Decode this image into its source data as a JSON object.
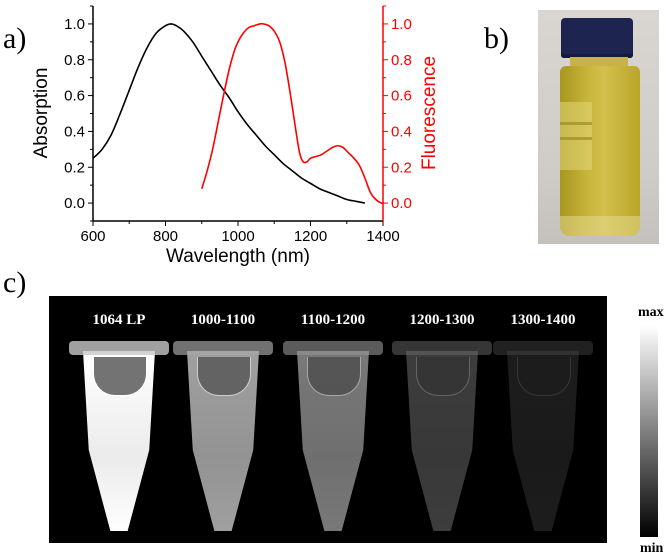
{
  "panels": {
    "a_label": "a)",
    "b_label": "b)",
    "c_label": "c)"
  },
  "chart_data": {
    "type": "line",
    "title": "",
    "xlabel": "Wavelength (nm)",
    "ylabel": "Absorption",
    "y2label": "Fluorescence",
    "xlim": [
      600,
      1400
    ],
    "ylim": [
      -0.1,
      1.1
    ],
    "y2lim": [
      -0.1,
      1.1
    ],
    "xticks": [
      600,
      800,
      1000,
      1200,
      1400
    ],
    "yticks": [
      "0.0",
      "0.2",
      "0.4",
      "0.6",
      "0.8",
      "1.0"
    ],
    "y2ticks": [
      "0.0",
      "0.2",
      "0.4",
      "0.6",
      "0.8",
      "1.0"
    ],
    "grid": false,
    "series": [
      {
        "name": "Absorption",
        "axis": "left",
        "color": "#000000",
        "x": [
          600,
          625,
          650,
          675,
          700,
          725,
          750,
          775,
          800,
          815,
          830,
          850,
          875,
          900,
          925,
          950,
          975,
          1000,
          1025,
          1050,
          1075,
          1100,
          1125,
          1150,
          1175,
          1200,
          1225,
          1250,
          1275,
          1300,
          1325,
          1350
        ],
        "y": [
          0.25,
          0.3,
          0.38,
          0.5,
          0.63,
          0.76,
          0.87,
          0.95,
          0.99,
          1.0,
          0.99,
          0.96,
          0.9,
          0.82,
          0.74,
          0.66,
          0.59,
          0.51,
          0.44,
          0.38,
          0.32,
          0.27,
          0.22,
          0.18,
          0.14,
          0.11,
          0.08,
          0.06,
          0.04,
          0.02,
          0.01,
          0.0
        ]
      },
      {
        "name": "Fluorescence",
        "axis": "right",
        "color": "#ff0000",
        "x": [
          900,
          915,
          930,
          945,
          960,
          975,
          990,
          1000,
          1015,
          1030,
          1045,
          1060,
          1070,
          1085,
          1100,
          1115,
          1130,
          1145,
          1160,
          1170,
          1180,
          1190,
          1200,
          1215,
          1230,
          1245,
          1260,
          1275,
          1290,
          1305,
          1320,
          1335,
          1350,
          1365,
          1380,
          1395,
          1400
        ],
        "y": [
          0.08,
          0.18,
          0.3,
          0.45,
          0.6,
          0.74,
          0.85,
          0.9,
          0.95,
          0.98,
          0.99,
          1.0,
          1.0,
          0.99,
          0.96,
          0.9,
          0.78,
          0.6,
          0.4,
          0.28,
          0.23,
          0.23,
          0.25,
          0.26,
          0.27,
          0.29,
          0.31,
          0.32,
          0.31,
          0.28,
          0.25,
          0.21,
          0.14,
          0.06,
          0.02,
          0.0,
          0.0
        ]
      }
    ]
  },
  "imaging": {
    "tubes": [
      {
        "label": "1064 LP",
        "intensity": 1.0
      },
      {
        "label": "1000-1100",
        "intensity": 0.72
      },
      {
        "label": "1100-1200",
        "intensity": 0.58
      },
      {
        "label": "1200-1300",
        "intensity": 0.32
      },
      {
        "label": "1300-1400",
        "intensity": 0.12
      }
    ],
    "colorbar_max": "max",
    "colorbar_min": "min"
  },
  "colors": {
    "absorption": "#000000",
    "fluorescence": "#ff0000",
    "vial_liquid": "#c8b53a",
    "vial_cap": "#1d2450"
  }
}
